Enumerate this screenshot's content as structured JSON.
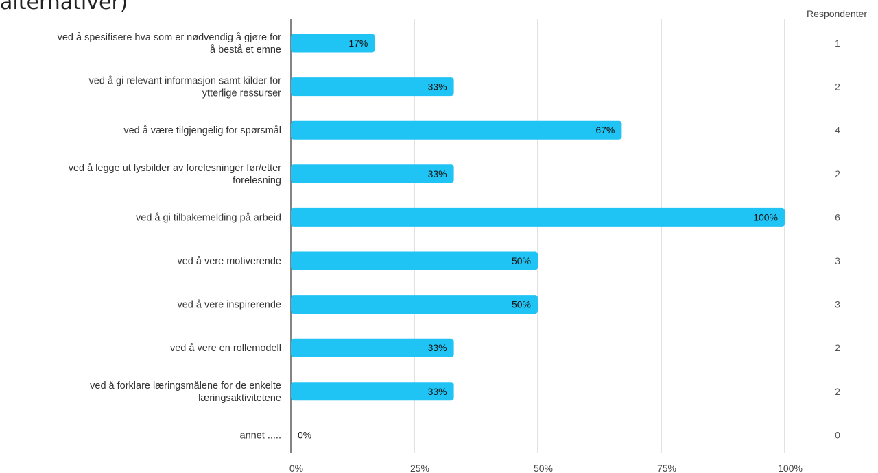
{
  "header": {
    "title": "alternativer)"
  },
  "chart_data": {
    "type": "bar",
    "orientation": "horizontal",
    "categories": [
      [
        "ved å spesifisere hva som er nødvendig å gjøre for",
        "å bestå et emne"
      ],
      [
        "ved å gi relevant informasjon samt kilder for",
        "ytterlige ressurser"
      ],
      [
        "ved å være tilgjengelig for spørsmål"
      ],
      [
        "ved å legge ut lysbilder av forelesninger før/etter",
        "forelesning"
      ],
      [
        "ved å gi tilbakemelding på arbeid"
      ],
      [
        "ved å vere motiverende"
      ],
      [
        "ved å vere inspirerende"
      ],
      [
        "ved å vere en rollemodell"
      ],
      [
        "ved å forklare læringsmålene for de enkelte",
        "læringsaktivitetene"
      ],
      [
        "annet ....."
      ]
    ],
    "values": [
      17,
      33,
      67,
      33,
      100,
      50,
      50,
      33,
      33,
      0
    ],
    "value_labels": [
      "17%",
      "33%",
      "67%",
      "33%",
      "100%",
      "50%",
      "50%",
      "33%",
      "33%",
      "0%"
    ],
    "respondents": [
      "1",
      "2",
      "4",
      "2",
      "6",
      "3",
      "3",
      "2",
      "2",
      "0"
    ],
    "respondents_header": "Respondenter",
    "x_ticks": [
      0,
      25,
      50,
      75,
      100
    ],
    "x_tick_labels": [
      "0%",
      "25%",
      "50%",
      "75%",
      "100%"
    ],
    "xlim": [
      0,
      100
    ],
    "grid": true,
    "bar_color": "#20C4F4",
    "grid_color": "#D3D3D3",
    "axis_color": "#333333"
  }
}
